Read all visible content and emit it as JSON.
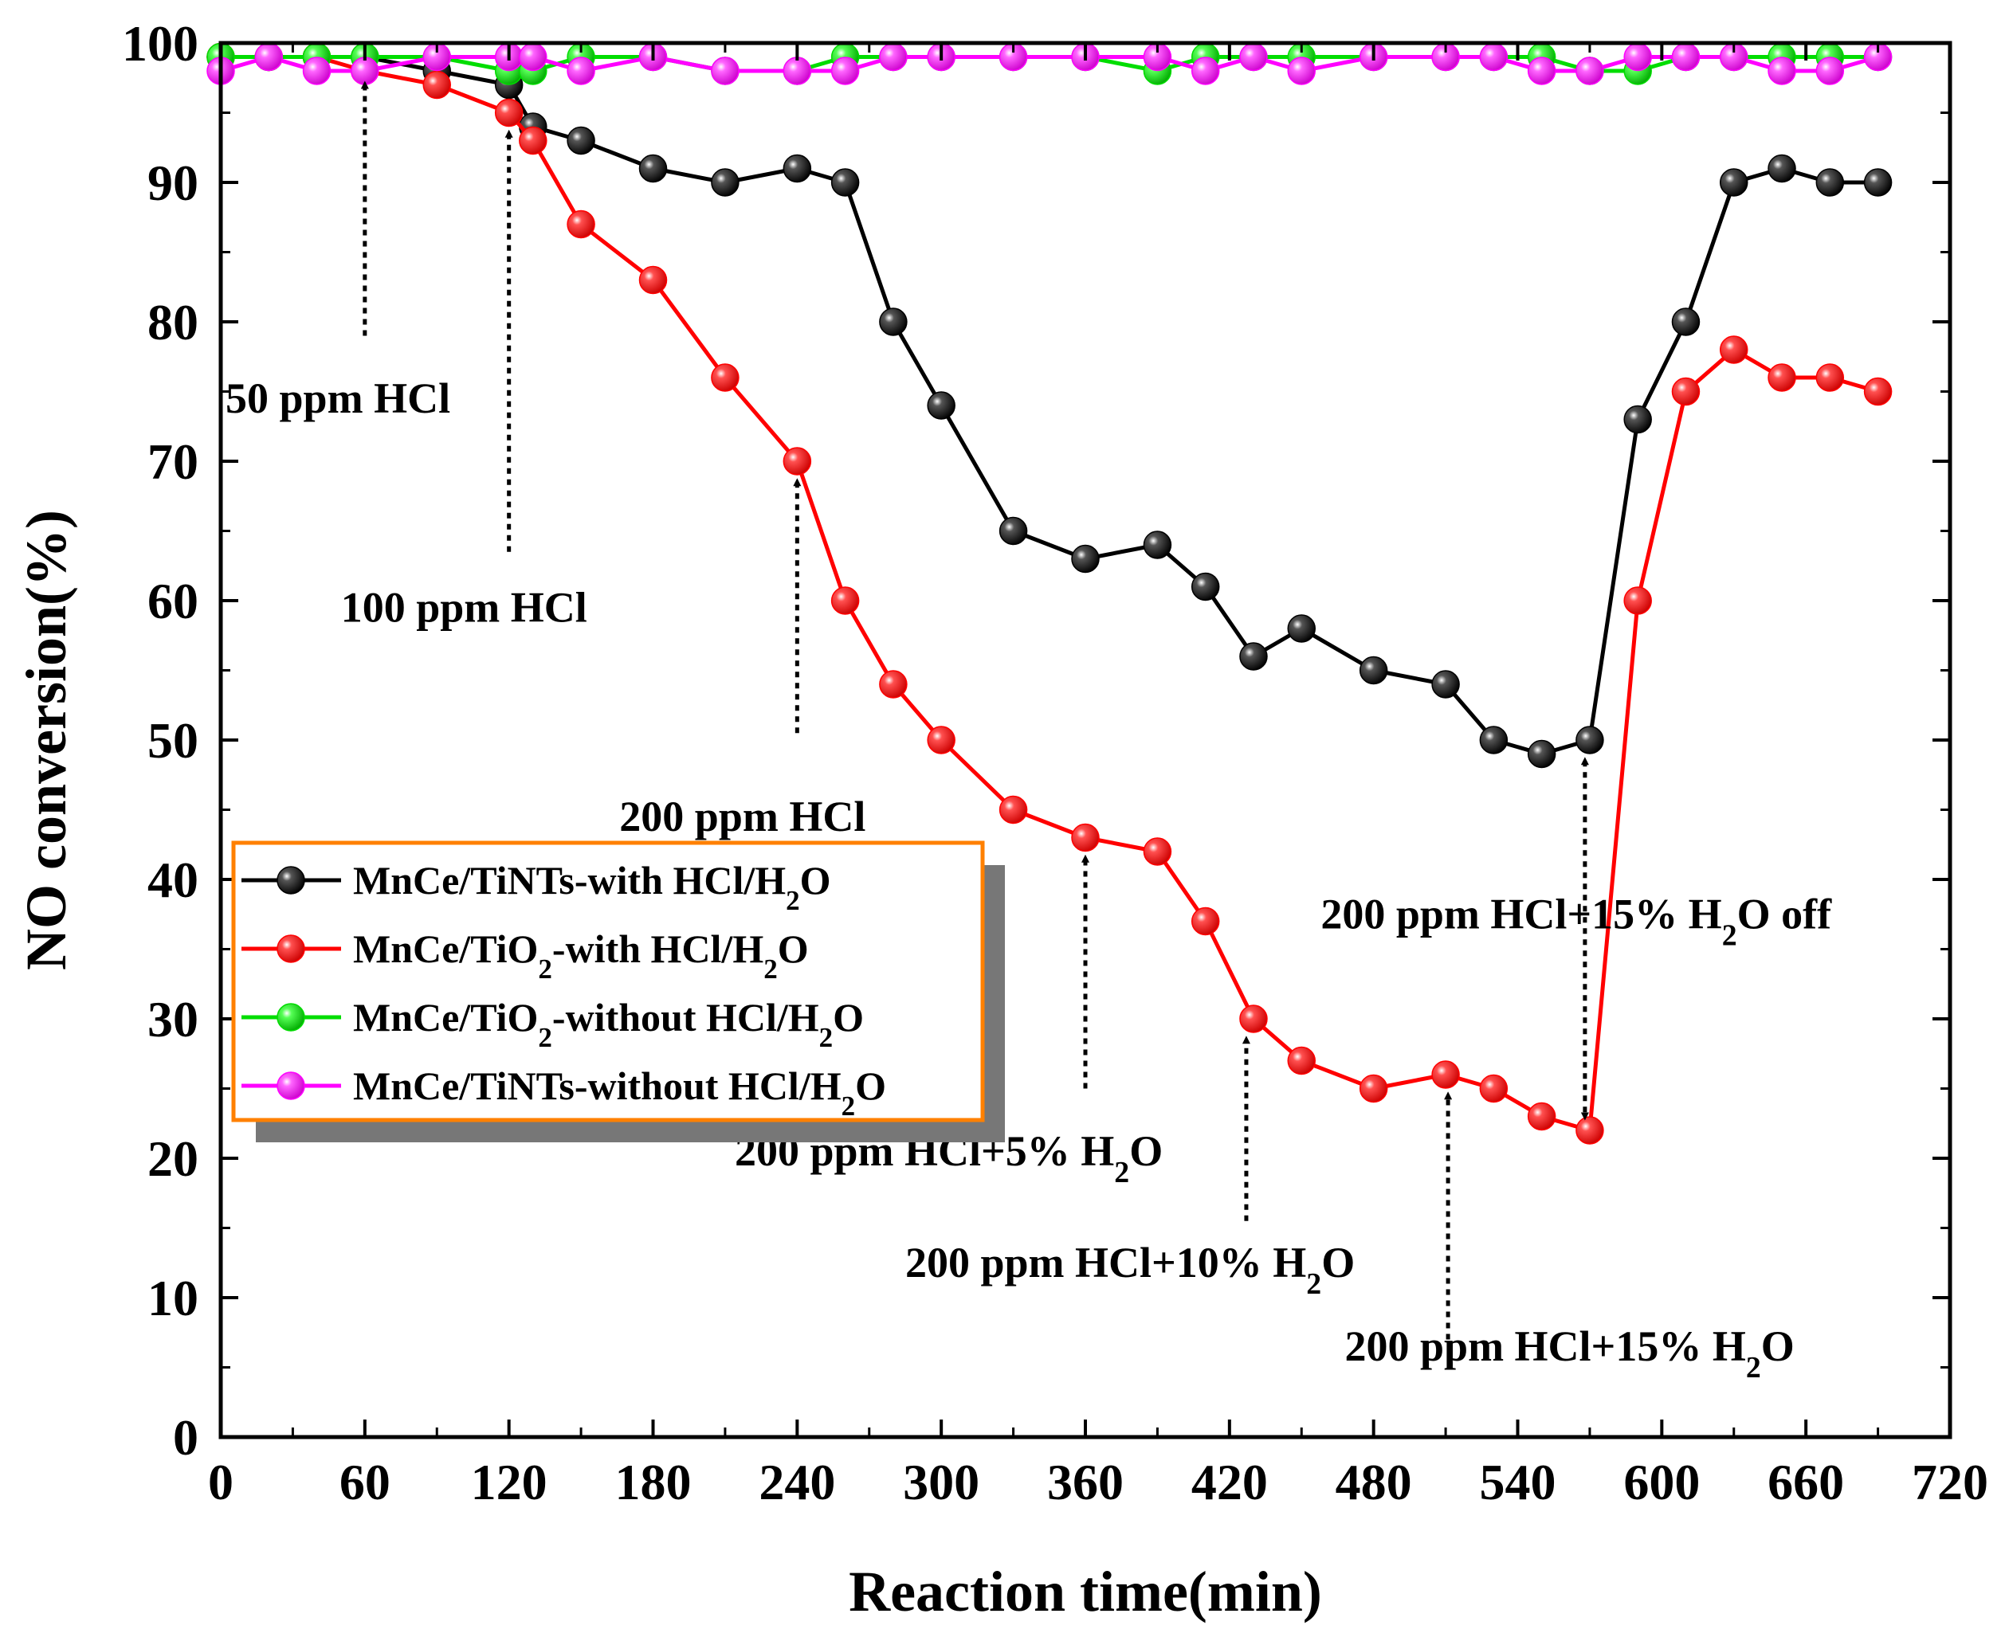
{
  "chart_data": {
    "type": "line",
    "xlabel": "Reaction time(min)",
    "ylabel": "NO conversion(%)",
    "xlim": [
      0,
      720
    ],
    "ylim": [
      0,
      100
    ],
    "xticks": [
      0,
      60,
      120,
      180,
      240,
      300,
      360,
      420,
      480,
      540,
      600,
      660,
      720
    ],
    "yticks": [
      0,
      10,
      20,
      30,
      40,
      50,
      60,
      70,
      80,
      90,
      100
    ],
    "series": [
      {
        "name": "MnCe/TiNTs-with HCl/H₂O",
        "legend_parts": [
          "MnCe/TiNTs-with HCl/H",
          "2",
          "O"
        ],
        "color": "#000000",
        "x": [
          0,
          20,
          40,
          60,
          90,
          120,
          130,
          150,
          180,
          210,
          240,
          260,
          280,
          300,
          330,
          360,
          390,
          410,
          430,
          450,
          480,
          510,
          530,
          550,
          570,
          590,
          610,
          630,
          650,
          670,
          690
        ],
        "y": [
          99,
          99,
          99,
          99,
          98,
          97,
          94,
          93,
          91,
          90,
          91,
          90,
          80,
          74,
          65,
          63,
          64,
          61,
          56,
          58,
          55,
          54,
          50,
          49,
          50,
          73,
          80,
          90,
          91,
          90,
          90
        ]
      },
      {
        "name": "MnCe/TiO₂-with HCl/H₂O",
        "legend_parts": [
          "MnCe/TiO",
          "2",
          "-with HCl/H",
          "2",
          "O"
        ],
        "color": "#ff0000",
        "x": [
          0,
          20,
          40,
          60,
          90,
          120,
          130,
          150,
          180,
          210,
          240,
          260,
          280,
          300,
          330,
          360,
          390,
          410,
          430,
          450,
          480,
          510,
          530,
          550,
          570,
          590,
          610,
          630,
          650,
          670,
          690
        ],
        "y": [
          99,
          99,
          99,
          98,
          97,
          95,
          93,
          87,
          83,
          76,
          70,
          60,
          54,
          50,
          45,
          43,
          42,
          37,
          30,
          27,
          25,
          26,
          25,
          23,
          22,
          60,
          75,
          78,
          76,
          76,
          75
        ]
      },
      {
        "name": "MnCe/TiO₂-without HCl/H₂O",
        "legend_parts": [
          "MnCe/TiO",
          "2",
          "-without HCl/H",
          "2",
          "O"
        ],
        "color": "#00dd00",
        "x": [
          0,
          20,
          40,
          60,
          90,
          120,
          130,
          150,
          180,
          210,
          240,
          260,
          280,
          300,
          330,
          360,
          390,
          410,
          430,
          450,
          480,
          510,
          530,
          550,
          570,
          590,
          610,
          630,
          650,
          670,
          690
        ],
        "y": [
          99,
          99,
          99,
          99,
          99,
          98,
          98,
          99,
          99,
          98,
          98,
          99,
          99,
          99,
          99,
          99,
          98,
          99,
          99,
          99,
          99,
          99,
          99,
          99,
          98,
          98,
          99,
          99,
          99,
          99,
          99
        ]
      },
      {
        "name": "MnCe/TiNTs-without HCl/H₂O",
        "legend_parts": [
          "MnCe/TiNTs-without HCl/H",
          "2",
          "O"
        ],
        "color": "#ff00ff",
        "x": [
          0,
          20,
          40,
          60,
          90,
          120,
          130,
          150,
          180,
          210,
          240,
          260,
          280,
          300,
          330,
          360,
          390,
          410,
          430,
          450,
          480,
          510,
          530,
          550,
          570,
          590,
          610,
          630,
          650,
          670,
          690
        ],
        "y": [
          98,
          99,
          98,
          98,
          99,
          99,
          99,
          98,
          99,
          98,
          98,
          98,
          99,
          99,
          99,
          99,
          99,
          98,
          99,
          98,
          99,
          99,
          99,
          98,
          98,
          99,
          99,
          99,
          98,
          98,
          99
        ]
      }
    ],
    "annotations": [
      {
        "id": "hcl50",
        "text_parts": [
          "50 ppm HCl"
        ],
        "arrow": "up",
        "arrow_x": 60,
        "arrow_from_y": 79,
        "arrow_to_y": 97,
        "text_x": 2,
        "text_y": 73.5,
        "anchor": "start"
      },
      {
        "id": "hcl100",
        "text_parts": [
          "100 ppm HCl"
        ],
        "arrow": "up",
        "arrow_x": 120,
        "arrow_from_y": 63.5,
        "arrow_to_y": 93.5,
        "text_x": 50,
        "text_y": 58.5,
        "anchor": "start"
      },
      {
        "id": "hcl200",
        "text_parts": [
          "200 ppm HCl"
        ],
        "arrow": "up",
        "arrow_x": 240,
        "arrow_from_y": 50.5,
        "arrow_to_y": 68.5,
        "text_x": 166,
        "text_y": 43.5,
        "anchor": "start"
      },
      {
        "id": "h2o5",
        "text_parts": [
          "200 ppm HCl+5% H",
          "2",
          "O"
        ],
        "arrow": "up",
        "arrow_x": 360,
        "arrow_from_y": 25,
        "arrow_to_y": 41.5,
        "text_x": 214,
        "text_y": 19.5,
        "anchor": "start"
      },
      {
        "id": "h2o10",
        "text_parts": [
          "200 ppm HCl+10% H",
          "2",
          "O"
        ],
        "arrow": "up",
        "arrow_x": 427,
        "arrow_from_y": 15.5,
        "arrow_to_y": 28.5,
        "text_x": 285,
        "text_y": 11.5,
        "anchor": "start"
      },
      {
        "id": "h2o15",
        "text_parts": [
          "200 ppm HCl+15% H",
          "2",
          "O"
        ],
        "arrow": "up",
        "arrow_x": 511,
        "arrow_from_y": 7,
        "arrow_to_y": 24.5,
        "text_x": 468,
        "text_y": 5.5,
        "anchor": "start"
      },
      {
        "id": "off",
        "text_parts": [
          "200 ppm HCl+15% H",
          "2",
          "O off"
        ],
        "arrow": "both",
        "arrow_x": 568,
        "arrow_from_y": 48.5,
        "arrow_to_y": 23,
        "text_x": 458,
        "text_y": 36.5,
        "anchor": "start"
      }
    ]
  }
}
